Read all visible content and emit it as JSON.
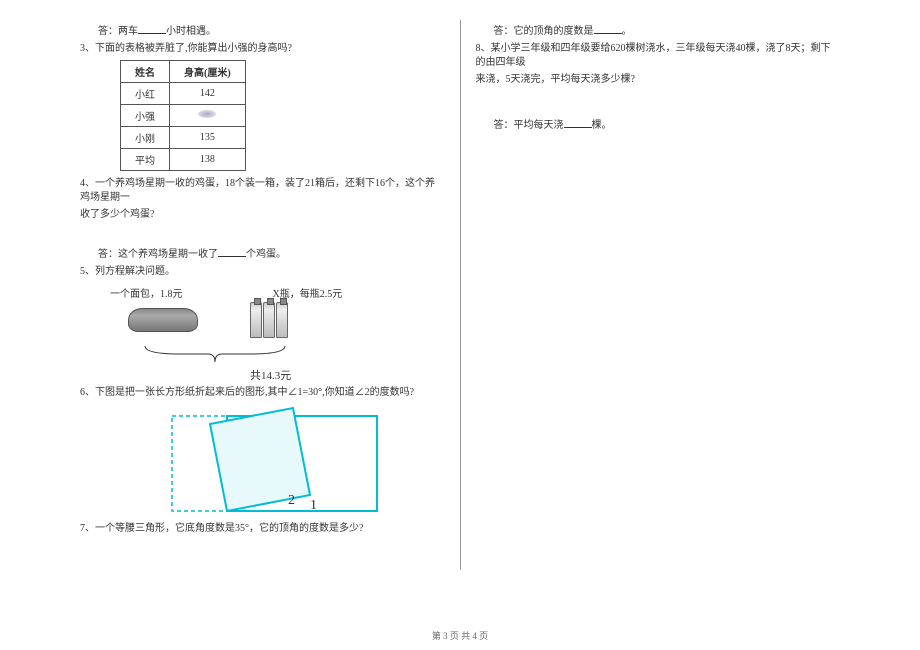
{
  "left": {
    "q2_ans": "答：两车____小时相遇。",
    "q3": "3、下面的表格被弄脏了,你能算出小强的身高吗?",
    "table": {
      "headers": [
        "姓名",
        "身高(厘米)"
      ],
      "rows": [
        [
          "小红",
          "142"
        ],
        [
          "小强",
          ""
        ],
        [
          "小刚",
          "135"
        ],
        [
          "平均",
          "138"
        ]
      ]
    },
    "q4_1": "4、一个养鸡场星期一收的鸡蛋，18个装一箱，装了21箱后，还剩下16个，这个养鸡场星期一",
    "q4_2": "收了多少个鸡蛋?",
    "q4_ans": "答：这个养鸡场星期一收了____个鸡蛋。",
    "q5": "5、列方程解决问题。",
    "q5_bread": "一个面包，1.8元",
    "q5_bottle": "X瓶，每瓶2.5元",
    "q5_total": "共14.3元",
    "q6": "6、下图是把一张长方形纸折起来后的图形,其中∠1=30°,你知道∠2的度数吗?",
    "q6_angle2": "2",
    "q6_angle1": "1",
    "q7": "7、一个等腰三角形，它底角度数是35°，它的顶角的度数是多少?",
    "fold_color": "#00bcd4"
  },
  "right": {
    "q7_ans": "答：它的顶角的度数是____。",
    "q8_1": "8、某小学三年级和四年级要给620棵树浇水，三年级每天浇40棵，浇了8天；剩下的由四年级",
    "q8_2": "来浇，5天浇完，平均每天浇多少棵?",
    "q8_ans": "答：平均每天浇____棵。"
  },
  "footer": "第 3 页 共 4 页"
}
